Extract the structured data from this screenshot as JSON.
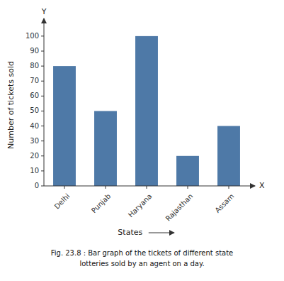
{
  "chart_data": {
    "type": "bar",
    "title": "Fig. 23.8 : Bar graph of the tickets of different state",
    "subtitle": "lotteries sold by an agent on a day.",
    "x_label": "States",
    "y_label": "Number of tickets sold",
    "annotations": [
      "Y",
      "X"
    ],
    "categories": [
      "Delhi",
      "Punjab",
      "Haryana",
      "Rajasthan",
      "Assam"
    ],
    "values": [
      80,
      50,
      100,
      20,
      40
    ],
    "ylim": [
      0,
      108
    ],
    "yticks": [
      0,
      10,
      20,
      30,
      40,
      50,
      60,
      70,
      80,
      90,
      100
    ],
    "grid": false
  }
}
